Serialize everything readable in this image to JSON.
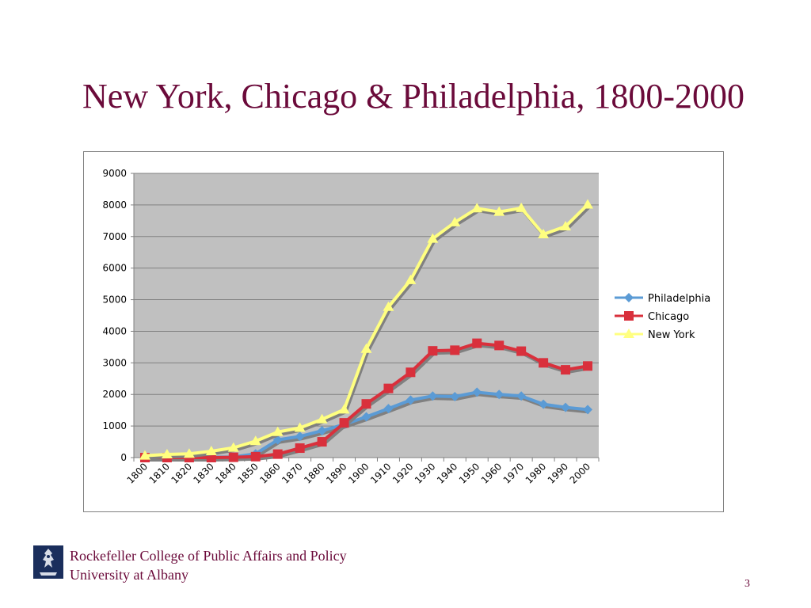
{
  "slide": {
    "title": "New York, Chicago & Philadelphia, 1800-2000",
    "page_number": "3"
  },
  "footer": {
    "line1": "Rockefeller College of Public Affairs and Policy",
    "line2": "University at Albany",
    "logo_icon": "college-seal-icon"
  },
  "colors": {
    "title": "#6b0a3a",
    "plot_area": "#c0c0c0",
    "philadelphia": "#5b9bd5",
    "chicago": "#d9303c",
    "new_york": "#ffff80"
  },
  "chart_data": {
    "type": "line",
    "title": "",
    "xlabel": "",
    "ylabel": "",
    "ylim": [
      0,
      9000
    ],
    "yticks": [
      0,
      1000,
      2000,
      3000,
      4000,
      5000,
      6000,
      7000,
      8000,
      9000
    ],
    "grid": true,
    "legend_position": "right",
    "categories": [
      "1800",
      "1810",
      "1820",
      "1830",
      "1840",
      "1850",
      "1860",
      "1870",
      "1880",
      "1890",
      "1900",
      "1910",
      "1920",
      "1930",
      "1940",
      "1950",
      "1960",
      "1970",
      "1980",
      "1990",
      "2000"
    ],
    "series": [
      {
        "name": "Philadelphia",
        "marker": "diamond",
        "values": [
          10,
          10,
          10,
          10,
          20,
          120,
          560,
          670,
          850,
          1050,
          1290,
          1550,
          1820,
          1950,
          1930,
          2070,
          2000,
          1950,
          1690,
          1590,
          1520
        ]
      },
      {
        "name": "Chicago",
        "marker": "square",
        "values": [
          0,
          0,
          0,
          0,
          10,
          30,
          110,
          300,
          500,
          1100,
          1700,
          2190,
          2700,
          3380,
          3400,
          3620,
          3550,
          3370,
          3000,
          2780,
          2900
        ]
      },
      {
        "name": "New York",
        "marker": "triangle",
        "values": [
          60,
          100,
          120,
          200,
          310,
          520,
          810,
          940,
          1210,
          1520,
          3440,
          4770,
          5620,
          6930,
          7450,
          7890,
          7780,
          7900,
          7070,
          7320,
          8010
        ]
      }
    ]
  }
}
